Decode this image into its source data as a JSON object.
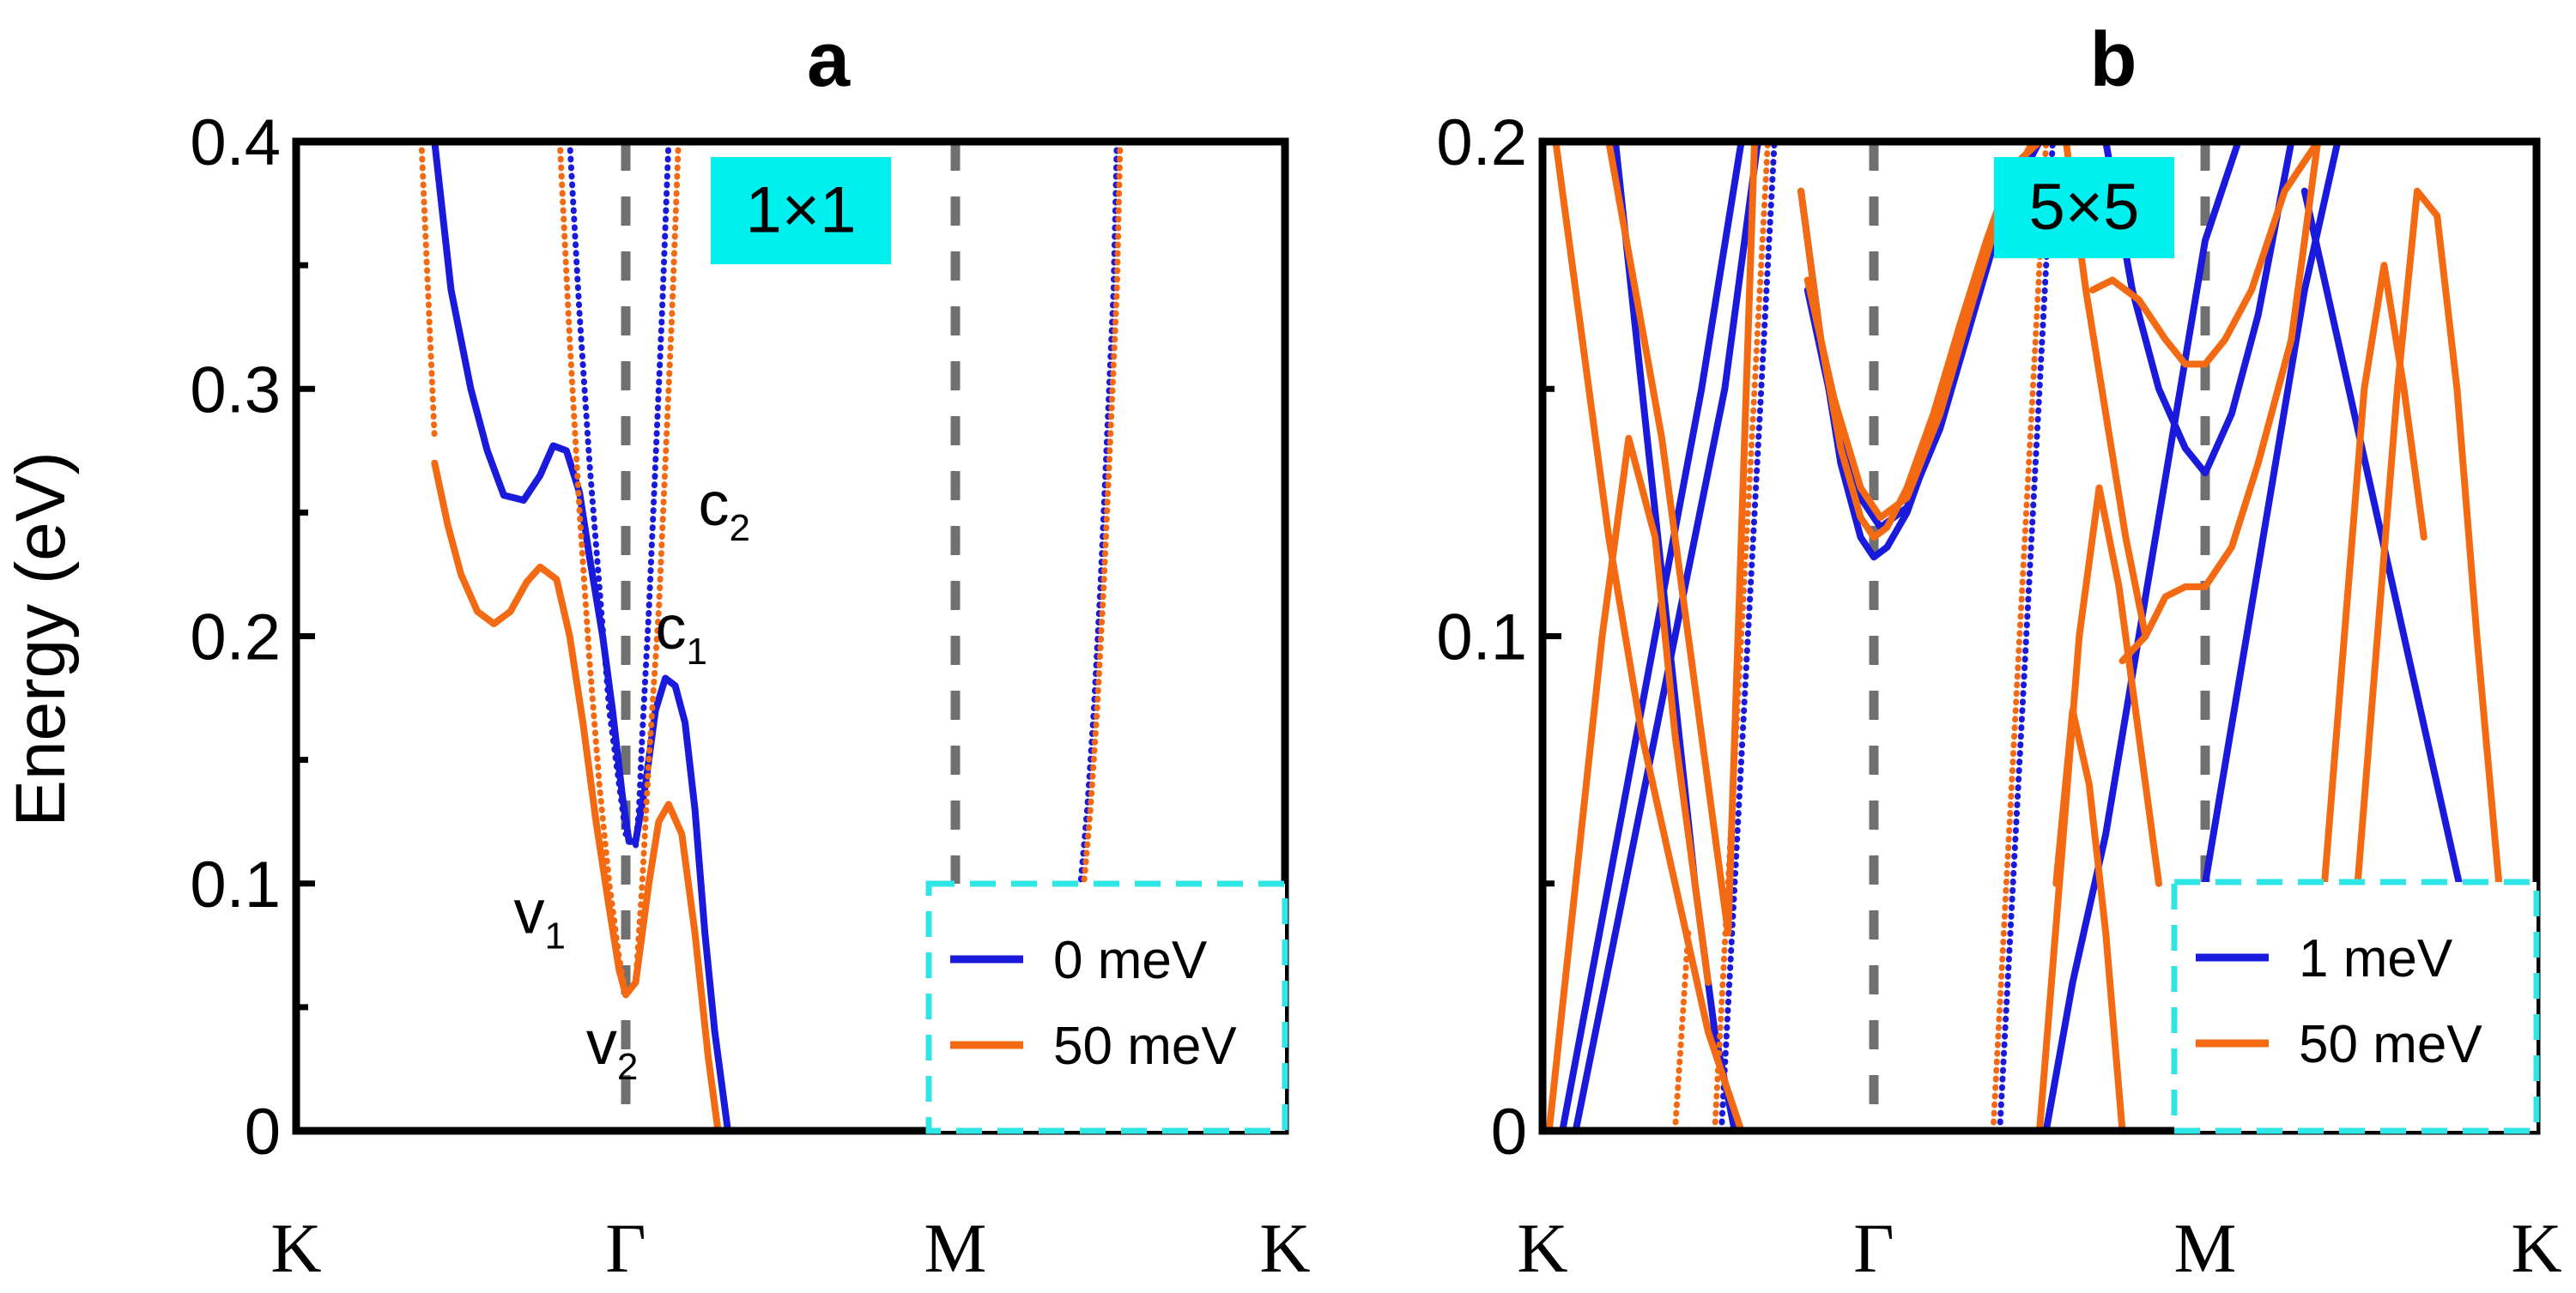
{
  "figure": {
    "ylabel": "Energy (eV)"
  },
  "colors": {
    "series_blue": "#1a1adc",
    "series_orange": "#f36a12",
    "badge": "#00f0f0",
    "legend_border": "#2ee6e6",
    "dashed_line": "#707070",
    "axis": "#000000"
  },
  "chart_data": [
    {
      "type": "line",
      "panel_label": "a",
      "badge": "1×1",
      "ylim": [
        0,
        0.4
      ],
      "yticks": [
        "0",
        "0.1",
        "0.2",
        "0.3",
        "0.4"
      ],
      "ytick_values": [
        0,
        0.1,
        0.2,
        0.3,
        0.4
      ],
      "xlim": [
        0,
        3
      ],
      "kpoints": [
        {
          "label": "K",
          "x": 0
        },
        {
          "label": "Γ",
          "x": 1
        },
        {
          "label": "M",
          "x": 2
        },
        {
          "label": "K",
          "x": 3
        }
      ],
      "band_labels": [
        {
          "base": "c",
          "sub": "2",
          "x": 1.22,
          "y": 0.245
        },
        {
          "base": "c",
          "sub": "1",
          "x": 1.09,
          "y": 0.195
        },
        {
          "base": "v",
          "sub": "1",
          "x": 0.66,
          "y": 0.08
        },
        {
          "base": "v",
          "sub": "2",
          "x": 0.88,
          "y": 0.027
        }
      ],
      "legend": [
        "0 meV",
        "50 meV"
      ],
      "series": [
        {
          "name": "0 meV",
          "color": "blue",
          "curves": [
            {
              "style": "solid",
              "x": [
                0.42,
                0.47,
                0.53,
                0.58,
                0.63,
                0.69,
                0.74,
                0.78,
                0.82,
                0.86,
                0.89,
                0.93,
                0.96,
                0.99,
                1.01,
                1.03,
                1.06,
                1.09,
                1.12,
                1.15,
                1.18,
                1.21,
                1.24,
                1.27,
                1.31
              ],
              "y": [
                0.4,
                0.34,
                0.3,
                0.275,
                0.257,
                0.255,
                0.265,
                0.277,
                0.275,
                0.258,
                0.232,
                0.2,
                0.17,
                0.135,
                0.117,
                0.117,
                0.14,
                0.17,
                0.183,
                0.18,
                0.165,
                0.13,
                0.08,
                0.04,
                0
              ]
            },
            {
              "style": "dotted",
              "x": [
                1.13,
                1.11,
                1.09,
                1.07,
                1.05,
                1.04,
                1.03
              ],
              "y": [
                0.4,
                0.33,
                0.27,
                0.21,
                0.16,
                0.13,
                0.115
              ]
            },
            {
              "style": "dotted",
              "x": [
                0.83,
                0.86,
                0.89,
                0.92,
                0.95,
                0.98,
                1.0
              ],
              "y": [
                0.4,
                0.33,
                0.27,
                0.22,
                0.17,
                0.14,
                0.12
              ]
            },
            {
              "style": "dotted",
              "x": [
                2.49,
                2.48,
                2.46,
                2.44,
                2.42,
                2.4,
                2.38
              ],
              "y": [
                0.4,
                0.34,
                0.28,
                0.22,
                0.17,
                0.13,
                0.1
              ]
            }
          ]
        },
        {
          "name": "50 meV",
          "color": "orange",
          "curves": [
            {
              "style": "solid",
              "x": [
                0.42,
                0.46,
                0.5,
                0.55,
                0.6,
                0.65,
                0.7,
                0.74,
                0.79,
                0.83,
                0.87,
                0.91,
                0.95,
                0.98,
                1.0,
                1.03,
                1.07,
                1.1,
                1.13,
                1.17,
                1.21,
                1.25,
                1.28
              ],
              "y": [
                0.27,
                0.245,
                0.225,
                0.21,
                0.205,
                0.21,
                0.222,
                0.228,
                0.223,
                0.2,
                0.165,
                0.125,
                0.09,
                0.065,
                0.055,
                0.06,
                0.1,
                0.125,
                0.132,
                0.12,
                0.08,
                0.03,
                0
              ]
            },
            {
              "style": "dotted",
              "x": [
                0.38,
                0.4,
                0.42
              ],
              "y": [
                0.4,
                0.34,
                0.28
              ]
            },
            {
              "style": "dotted",
              "x": [
                0.8,
                0.83,
                0.86,
                0.89,
                0.92,
                0.95,
                0.98,
                1.0
              ],
              "y": [
                0.4,
                0.32,
                0.25,
                0.19,
                0.14,
                0.1,
                0.07,
                0.055
              ]
            },
            {
              "style": "dotted",
              "x": [
                1.16,
                1.14,
                1.12,
                1.1,
                1.07,
                1.05,
                1.03
              ],
              "y": [
                0.4,
                0.33,
                0.27,
                0.21,
                0.15,
                0.1,
                0.06
              ]
            },
            {
              "style": "dotted",
              "x": [
                2.5,
                2.49,
                2.47,
                2.45,
                2.43,
                2.41,
                2.39
              ],
              "y": [
                0.4,
                0.34,
                0.28,
                0.22,
                0.17,
                0.13,
                0.1
              ]
            }
          ]
        }
      ]
    },
    {
      "type": "line",
      "panel_label": "b",
      "badge": "5×5",
      "ylim": [
        0,
        0.2
      ],
      "yticks": [
        "0",
        "0.1",
        "0.2"
      ],
      "ytick_values": [
        0,
        0.1,
        0.2
      ],
      "xlim": [
        0,
        3
      ],
      "kpoints": [
        {
          "label": "K",
          "x": 0
        },
        {
          "label": "Γ",
          "x": 1
        },
        {
          "label": "M",
          "x": 2
        },
        {
          "label": "K",
          "x": 3
        }
      ],
      "legend": [
        "1 meV",
        "50 meV"
      ],
      "series": [
        {
          "name": "1 meV",
          "color": "blue",
          "curves": [
            {
              "style": "solid",
              "x": [
                0.06,
                0.2,
                0.34,
                0.48,
                0.6
              ],
              "y": [
                0,
                0.05,
                0.1,
                0.15,
                0.2
              ]
            },
            {
              "style": "solid",
              "x": [
                0.1,
                0.25,
                0.4,
                0.55,
                0.65
              ],
              "y": [
                0,
                0.05,
                0.1,
                0.15,
                0.2
              ]
            },
            {
              "style": "solid",
              "x": [
                0.78,
                0.84,
                0.9,
                0.96,
                1.0,
                1.04,
                1.1,
                1.18,
                1.26,
                1.34,
                1.42,
                1.5
              ],
              "y": [
                0.19,
                0.16,
                0.135,
                0.12,
                0.116,
                0.118,
                0.125,
                0.14,
                0.158,
                0.175,
                0.19,
                0.2
              ]
            },
            {
              "style": "solid",
              "x": [
                0.8,
                0.88,
                0.96,
                1.02,
                1.1,
                1.2,
                1.3,
                1.4,
                1.48
              ],
              "y": [
                0.17,
                0.145,
                0.128,
                0.122,
                0.126,
                0.142,
                0.165,
                0.188,
                0.2
              ]
            },
            {
              "style": "solid",
              "x": [
                1.52,
                1.6,
                1.7,
                1.8,
                1.9,
                2.0,
                2.1,
                2.2,
                2.3
              ],
              "y": [
                0,
                0.03,
                0.06,
                0.1,
                0.14,
                0.18,
                0.2,
                0.2,
                0.2
              ]
            },
            {
              "style": "solid",
              "x": [
                1.7,
                1.78,
                1.86,
                1.94,
                2.0,
                2.08,
                2.16,
                2.26
              ],
              "y": [
                0.2,
                0.17,
                0.15,
                0.138,
                0.133,
                0.145,
                0.165,
                0.2
              ]
            },
            {
              "style": "solid",
              "x": [
                2.3,
                2.4,
                2.5,
                2.6,
                2.7,
                2.8,
                2.9,
                2.97
              ],
              "y": [
                0.19,
                0.16,
                0.13,
                0.1,
                0.07,
                0.04,
                0.015,
                0
              ]
            },
            {
              "style": "solid",
              "x": [
                2.0,
                2.1,
                2.2,
                2.3,
                2.4,
                2.46
              ],
              "y": [
                0.05,
                0.09,
                0.13,
                0.17,
                0.2,
                0.2
              ]
            },
            {
              "style": "solid",
              "x": [
                0.22,
                0.3,
                0.38,
                0.46,
                0.52,
                0.58
              ],
              "y": [
                0.2,
                0.15,
                0.1,
                0.05,
                0.02,
                0
              ]
            },
            {
              "style": "dotted",
              "x": [
                0.54,
                0.58,
                0.62,
                0.66,
                0.7
              ],
              "y": [
                0,
                0.05,
                0.1,
                0.15,
                0.2
              ]
            },
            {
              "style": "dotted",
              "x": [
                1.38,
                1.42,
                1.46,
                1.5,
                1.54
              ],
              "y": [
                0,
                0.05,
                0.1,
                0.15,
                0.2
              ]
            }
          ]
        },
        {
          "name": "50 meV",
          "color": "orange",
          "curves": [
            {
              "style": "solid",
              "x": [
                0.02,
                0.1,
                0.18,
                0.26,
                0.34,
                0.4,
                0.46,
                0.5
              ],
              "y": [
                0,
                0.05,
                0.1,
                0.14,
                0.12,
                0.08,
                0.05,
                0.03
              ]
            },
            {
              "style": "solid",
              "x": [
                0.04,
                0.12,
                0.2,
                0.3,
                0.4,
                0.5,
                0.6
              ],
              "y": [
                0.2,
                0.16,
                0.12,
                0.08,
                0.05,
                0.02,
                0
              ]
            },
            {
              "style": "solid",
              "x": [
                0.2,
                0.28,
                0.36,
                0.44,
                0.5,
                0.56,
                0.64
              ],
              "y": [
                0.2,
                0.17,
                0.14,
                0.1,
                0.07,
                0.04,
                0.2
              ]
            },
            {
              "style": "solid",
              "x": [
                0.78,
                0.84,
                0.9,
                0.96,
                1.0,
                1.04,
                1.1,
                1.18,
                1.26,
                1.34,
                1.42,
                1.5
              ],
              "y": [
                0.19,
                0.16,
                0.138,
                0.124,
                0.12,
                0.122,
                0.13,
                0.145,
                0.163,
                0.18,
                0.195,
                0.2
              ]
            },
            {
              "style": "solid",
              "x": [
                0.8,
                0.88,
                0.96,
                1.02,
                1.1,
                1.2,
                1.3,
                1.4,
                1.48
              ],
              "y": [
                0.172,
                0.148,
                0.13,
                0.124,
                0.128,
                0.145,
                0.168,
                0.19,
                0.2
              ]
            },
            {
              "style": "solid",
              "x": [
                1.5,
                1.56,
                1.62,
                1.68,
                1.74,
                1.8,
                1.86
              ],
              "y": [
                0,
                0.05,
                0.1,
                0.13,
                0.11,
                0.08,
                0.05
              ]
            },
            {
              "style": "solid",
              "x": [
                1.58,
                1.64,
                1.7,
                1.76,
                1.82
              ],
              "y": [
                0.2,
                0.17,
                0.145,
                0.12,
                0.1
              ]
            },
            {
              "style": "solid",
              "x": [
                1.66,
                1.72,
                1.8,
                1.88,
                1.94,
                2.0,
                2.06,
                2.14,
                2.24,
                2.34
              ],
              "y": [
                0.17,
                0.172,
                0.168,
                0.16,
                0.155,
                0.155,
                0.16,
                0.17,
                0.19,
                0.2
              ]
            },
            {
              "style": "solid",
              "x": [
                1.75,
                1.82,
                1.88,
                1.94,
                2.0,
                2.08,
                2.16,
                2.26,
                2.34
              ],
              "y": [
                0.095,
                0.1,
                0.108,
                0.11,
                0.11,
                0.118,
                0.135,
                0.16,
                0.2
              ]
            },
            {
              "style": "solid",
              "x": [
                2.3,
                2.36,
                2.42,
                2.48,
                2.54,
                2.6,
                2.66
              ],
              "y": [
                0,
                0.05,
                0.1,
                0.15,
                0.175,
                0.15,
                0.12
              ]
            },
            {
              "style": "solid",
              "x": [
                2.46,
                2.52,
                2.58,
                2.64,
                2.7,
                2.76,
                2.82,
                2.9
              ],
              "y": [
                0.05,
                0.1,
                0.15,
                0.19,
                0.185,
                0.15,
                0.1,
                0.04
              ]
            },
            {
              "style": "solid",
              "x": [
                1.55,
                1.6,
                1.65,
                1.7,
                1.75
              ],
              "y": [
                0.05,
                0.085,
                0.07,
                0.04,
                0.0
              ]
            },
            {
              "style": "dotted",
              "x": [
                0.52,
                0.56,
                0.6,
                0.64,
                0.68
              ],
              "y": [
                0,
                0.05,
                0.1,
                0.15,
                0.2
              ]
            },
            {
              "style": "dotted",
              "x": [
                1.36,
                1.4,
                1.44,
                1.48,
                1.52
              ],
              "y": [
                0,
                0.05,
                0.1,
                0.15,
                0.2
              ]
            },
            {
              "style": "dotted",
              "x": [
                0.4,
                0.42,
                0.44
              ],
              "y": [
                0,
                0.02,
                0.04
              ]
            }
          ]
        }
      ]
    }
  ]
}
